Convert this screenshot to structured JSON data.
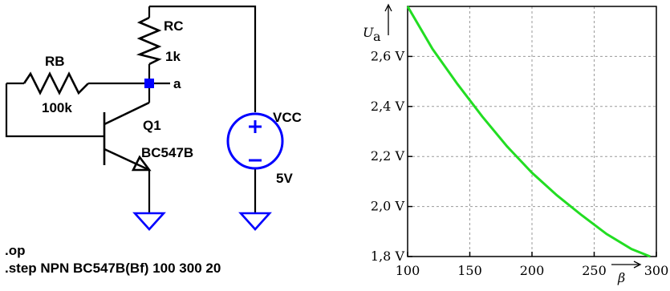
{
  "schematic": {
    "rc": {
      "name": "RC",
      "value": "1k"
    },
    "rb": {
      "name": "RB",
      "value": "100k"
    },
    "q1": {
      "name": "Q1",
      "model": "BC547B"
    },
    "vcc": {
      "name": "VCC",
      "value": "5V"
    },
    "node_label": "a",
    "directives": [
      ".op",
      ".step NPN BC547B(Bf) 100 300 20"
    ],
    "colors": {
      "wire": "#000000",
      "ground": "#0000ff",
      "node": "#0000ff"
    }
  },
  "chart_data": {
    "type": "line",
    "ylabel_main": "U",
    "ylabel_sub": "a",
    "xlabel": "β",
    "xlim": [
      100,
      300
    ],
    "ylim": [
      1.8,
      2.8
    ],
    "grid": true,
    "x_ticks": [
      "100",
      "150",
      "200",
      "250",
      "300"
    ],
    "x_tick_values": [
      100,
      150,
      200,
      250,
      300
    ],
    "y_ticks": [
      "1,8 V",
      "2,0 V",
      "2,2 V",
      "2,4 V",
      "2,6 V"
    ],
    "y_tick_values": [
      1.8,
      2.0,
      2.2,
      2.4,
      2.6
    ],
    "series": [
      {
        "color": "#22dd22",
        "x": [
          100,
          120,
          140,
          160,
          180,
          200,
          220,
          240,
          260,
          280,
          295
        ],
        "y": [
          2.8,
          2.63,
          2.49,
          2.36,
          2.24,
          2.135,
          2.045,
          1.965,
          1.89,
          1.83,
          1.8
        ]
      }
    ]
  }
}
